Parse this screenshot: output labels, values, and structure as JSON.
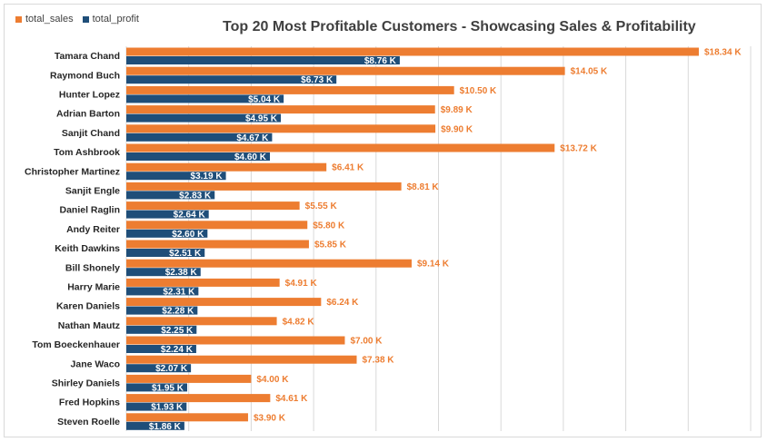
{
  "colors": {
    "sales": "#ED7D31",
    "profit": "#1F4E79",
    "grid": "#D9D9D9",
    "axis_text": "#262626"
  },
  "chart_data": {
    "type": "bar",
    "orientation": "horizontal",
    "title": "Top 20 Most Profitable Customers - Showcasing Sales & Profitability",
    "legend_position": "top-left",
    "grid": true,
    "xlim": [
      0,
      20000
    ],
    "grid_step": 2000,
    "categories": [
      "Tamara Chand",
      "Raymond Buch",
      "Hunter Lopez",
      "Adrian Barton",
      "Sanjit Chand",
      "Tom Ashbrook",
      "Christopher Martinez",
      "Sanjit Engle",
      "Daniel Raglin",
      "Andy Reiter",
      "Keith Dawkins",
      "Bill Shonely",
      "Harry Marie",
      "Karen Daniels",
      "Nathan Mautz",
      "Tom Boeckenhauer",
      "Jane Waco",
      "Shirley Daniels",
      "Fred Hopkins",
      "Steven Roelle"
    ],
    "series": [
      {
        "name": "total_sales",
        "values": [
          18340,
          14050,
          10500,
          9890,
          9900,
          13720,
          6410,
          8810,
          5550,
          5800,
          5850,
          9140,
          4910,
          6240,
          4820,
          7000,
          7380,
          4000,
          4610,
          3900
        ],
        "labels": [
          "$18.34 K",
          "$14.05 K",
          "$10.50 K",
          "$9.89 K",
          "$9.90 K",
          "$13.72 K",
          "$6.41 K",
          "$8.81 K",
          "$5.55 K",
          "$5.80 K",
          "$5.85 K",
          "$9.14 K",
          "$4.91 K",
          "$6.24 K",
          "$4.82 K",
          "$7.00 K",
          "$7.38 K",
          "$4.00 K",
          "$4.61 K",
          "$3.90 K"
        ]
      },
      {
        "name": "total_profit",
        "values": [
          8760,
          6730,
          5040,
          4950,
          4670,
          4600,
          3190,
          2830,
          2640,
          2600,
          2510,
          2380,
          2310,
          2280,
          2250,
          2240,
          2070,
          1950,
          1930,
          1860
        ],
        "labels": [
          "$8.76 K",
          "$6.73 K",
          "$5.04 K",
          "$4.95 K",
          "$4.67 K",
          "$4.60 K",
          "$3.19 K",
          "$2.83 K",
          "$2.64 K",
          "$2.60 K",
          "$2.51 K",
          "$2.38 K",
          "$2.31 K",
          "$2.28 K",
          "$2.25 K",
          "$2.24 K",
          "$2.07 K",
          "$1.95 K",
          "$1.93 K",
          "$1.86 K"
        ]
      }
    ]
  }
}
